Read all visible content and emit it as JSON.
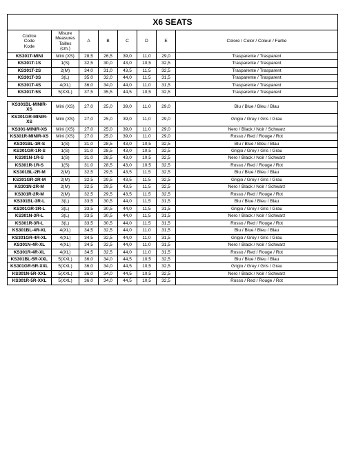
{
  "title": "X6 SEATS",
  "headers": {
    "code": "Codice\nCode\nKode",
    "size": "Misure\nMeasures\nTailles\n(cm.)",
    "A": "A",
    "B": "B",
    "C": "C",
    "D": "D",
    "E": "E",
    "color": "Colore / Color / Coleur / Farbe"
  },
  "group1": [
    {
      "code": "KS301T-MINI",
      "size": "Mini (XS)",
      "A": "28,5",
      "B": "26,5",
      "C": "39,0",
      "D": "11,0",
      "E": "29,0",
      "color": "Trasparente / Trasparent"
    },
    {
      "code": "KS301T-1S",
      "size": "1(S)",
      "A": "32,5",
      "B": "30,0",
      "C": "43,0",
      "D": "10,5",
      "E": "32,5",
      "color": "Trasparente / Trasparent"
    },
    {
      "code": "KS301T-2S",
      "size": "2(M)",
      "A": "34,0",
      "B": "31,0",
      "C": "43,5",
      "D": "11,5",
      "E": "32,5",
      "color": "Trasparente / Trasparent"
    },
    {
      "code": "KS301T-3S",
      "size": "3(L)",
      "A": "35,0",
      "B": "32,0",
      "C": "44,0",
      "D": "11,5",
      "E": "31,5",
      "color": "Trasparente / Trasparent"
    },
    {
      "code": "KS301T-4S",
      "size": "4(XL)",
      "A": "36,0",
      "B": "34,0",
      "C": "44,0",
      "D": "11,0",
      "E": "31,5",
      "color": "Trasparente / Trasparent"
    },
    {
      "code": "KS301T-5S",
      "size": "5(XXL)",
      "A": "37,5",
      "B": "35,5",
      "C": "44,5",
      "D": "10,5",
      "E": "32,5",
      "color": "Trasparente / Trasparent"
    }
  ],
  "group2": [
    {
      "code": "KS301BL-MINIR-XS",
      "size": "Mini (XS)",
      "A": "27,0",
      "B": "25,0",
      "C": "39,0",
      "D": "11,0",
      "E": "29,0",
      "color": "Blu / Blue / Bleu / Blau"
    },
    {
      "code": "KS301GR-MINIR-XS",
      "size": "Mini (XS)",
      "A": "27,0",
      "B": "25,0",
      "C": "39,0",
      "D": "11,0",
      "E": "29,0",
      "color": "Grigio / Grey / Gris / Grau"
    },
    {
      "code": "KS301-MINIR-XS",
      "size": "Mini (XS)",
      "A": "27,0",
      "B": "25,0",
      "C": "39,0",
      "D": "11,0",
      "E": "29,0",
      "color": "Nero / Black / Noir / Schwarz"
    },
    {
      "code": "KS301R-MINIR-XS",
      "size": "Mini (XS)",
      "A": "27,0",
      "B": "25,0",
      "C": "39,0",
      "D": "11,0",
      "E": "29,0",
      "color": "Rosso / Red / Rouge / Rot"
    },
    {
      "code": "KS301BL-1R-S",
      "size": "1(S)",
      "A": "31,0",
      "B": "28,5",
      "C": "43,0",
      "D": "10,5",
      "E": "32,5",
      "color": "Blu / Blue / Bleu / Blau"
    },
    {
      "code": "KS301GR-1R-S",
      "size": "1(S)",
      "A": "31,0",
      "B": "28,5",
      "C": "43,0",
      "D": "10,5",
      "E": "32,5",
      "color": "Grigio / Grey / Gris / Grau"
    },
    {
      "code": "KS301N-1R-S",
      "size": "1(S)",
      "A": "31,0",
      "B": "28,5",
      "C": "43,0",
      "D": "10,5",
      "E": "32,5",
      "color": "Nero / Black / Noir / Schwarz"
    },
    {
      "code": "KS301R-1R-S",
      "size": "1(S)",
      "A": "31,0",
      "B": "28,5",
      "C": "43,0",
      "D": "10,5",
      "E": "32,5",
      "color": "Rosso / Red / Rouge / Rot"
    },
    {
      "code": "KS301BL-2R-M",
      "size": "2(M)",
      "A": "32,5",
      "B": "29,5",
      "C": "43,5",
      "D": "11,5",
      "E": "32,5",
      "color": "Blu / Blue / Bleu / Blau"
    },
    {
      "code": "KS301GR-2R-M",
      "size": "2(M)",
      "A": "32,5",
      "B": "29,5",
      "C": "43,5",
      "D": "11,5",
      "E": "32,5",
      "color": "Grigio / Grey / Gris / Grau"
    },
    {
      "code": "KS301N-2R-M",
      "size": "2(M)",
      "A": "32,5",
      "B": "29,5",
      "C": "43,5",
      "D": "11,5",
      "E": "32,5",
      "color": "Nero / Black / Noir / Schwarz"
    },
    {
      "code": "KS301R-2R-M",
      "size": "2(M)",
      "A": "32,5",
      "B": "29,5",
      "C": "43,5",
      "D": "11,5",
      "E": "32,5",
      "color": "Rosso / Red / Rouge / Rot"
    },
    {
      "code": "KS301BL-3R-L",
      "size": "3(L)",
      "A": "33,5",
      "B": "30,5",
      "C": "44,0",
      "D": "11,5",
      "E": "31,5",
      "color": "Blu / Blue / Bleu / Blau"
    },
    {
      "code": "KS301GR-3R-L",
      "size": "3(L)",
      "A": "33,5",
      "B": "30,5",
      "C": "44,0",
      "D": "11,5",
      "E": "31,5",
      "color": "Grigio / Grey / Gris / Grau"
    },
    {
      "code": "KS301N-3R-L",
      "size": "3(L)",
      "A": "33,5",
      "B": "30,5",
      "C": "44,0",
      "D": "11,5",
      "E": "31,5",
      "color": "Nero / Black / Noir / Schwarz"
    },
    {
      "code": "KS301R-3R-L",
      "size": "3(L)",
      "A": "33,5",
      "B": "30,5",
      "C": "44,0",
      "D": "11,5",
      "E": "31,5",
      "color": "Rosso / Red / Rouge / Rot"
    },
    {
      "code": "KS301BL-4R-XL",
      "size": "4(XL)",
      "A": "34,5",
      "B": "32,5",
      "C": "44,0",
      "D": "11,0",
      "E": "31,5",
      "color": "Blu / Blue / Bleu / Blau"
    },
    {
      "code": "KS301GR-4R-XL",
      "size": "4(XL)",
      "A": "34,5",
      "B": "32,5",
      "C": "44,0",
      "D": "11,0",
      "E": "31,5",
      "color": "Grigio / Grey / Gris / Grau"
    },
    {
      "code": "KS301N-4R-XL",
      "size": "4(XL)",
      "A": "34,5",
      "B": "32,5",
      "C": "44,0",
      "D": "11,0",
      "E": "31,5",
      "color": "Nero / Black / Noir / Schwarz"
    },
    {
      "code": "KS301R-4R-XL",
      "size": "4(XL)",
      "A": "34,5",
      "B": "32,5",
      "C": "44,0",
      "D": "11,0",
      "E": "31,5",
      "color": "Rosso / Red / Rouge / Rot"
    },
    {
      "code": "KS301BL-5R-XXL",
      "size": "5(XXL)",
      "A": "36,0",
      "B": "34,0",
      "C": "44,5",
      "D": "10,5",
      "E": "32,5",
      "color": "Blu / Blue / Bleu / Blau"
    },
    {
      "code": "KS301GR-5R-XXL",
      "size": "5(XXL)",
      "A": "36,0",
      "B": "34,0",
      "C": "44,5",
      "D": "10,5",
      "E": "32,5",
      "color": "Grigio / Grey / Gris / Grau"
    },
    {
      "code": "KS301N-5R-XXL",
      "size": "5(XXL)",
      "A": "36,0",
      "B": "34,0",
      "C": "44,5",
      "D": "10,5",
      "E": "32,5",
      "color": "Nero / Black / Noir / Schwarz"
    },
    {
      "code": "KS301R-5R-XXL",
      "size": "5(XXL)",
      "A": "36,0",
      "B": "34,0",
      "C": "44,5",
      "D": "10,5",
      "E": "32,5",
      "color": "Rosso / Red / Rouge / Rot"
    }
  ]
}
